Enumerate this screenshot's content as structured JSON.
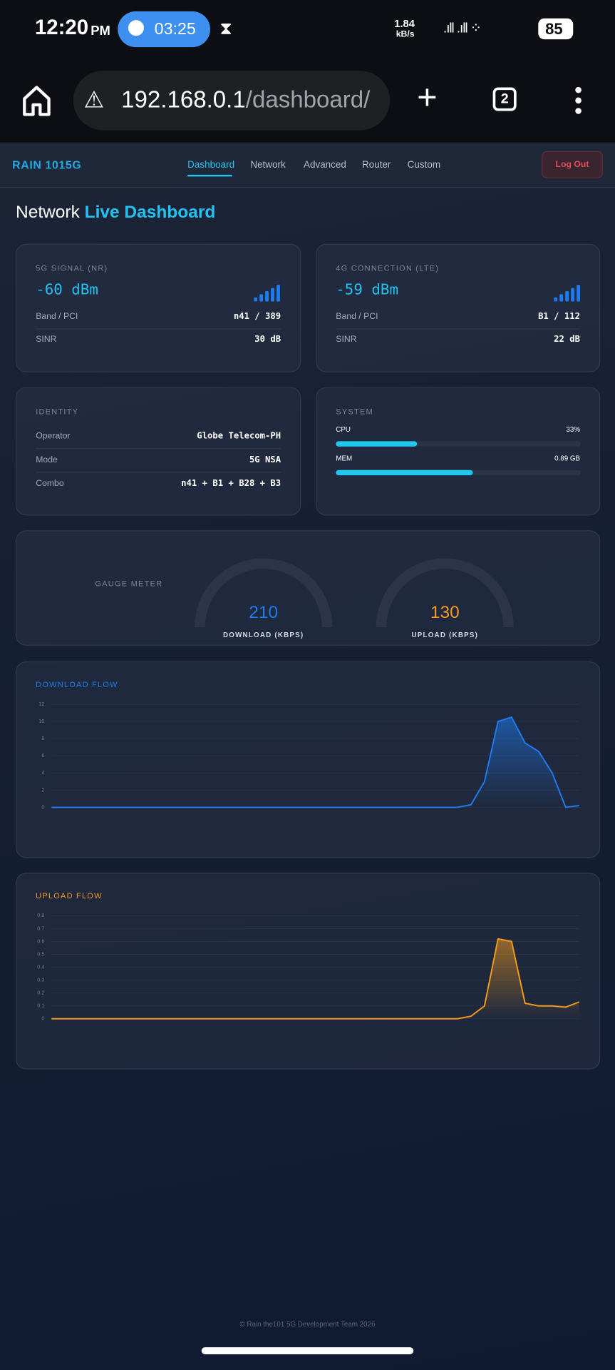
{
  "status_bar": {
    "time": "12:20",
    "meridiem": "PM",
    "timer": "03:25",
    "speed": "1.84",
    "speed_unit": "kB/s",
    "battery": "85"
  },
  "browser": {
    "url_host": "192.168.0.1",
    "url_path": "/dashboard/",
    "tabs": "2"
  },
  "nav": {
    "brand": "RAIN 1015G",
    "links": [
      "Dashboard",
      "Network",
      "Advanced",
      "Router",
      "Custom"
    ],
    "logout": "Log Out"
  },
  "heading": {
    "plain": "Network",
    "accent": "Live Dashboard"
  },
  "signal_5g": {
    "label": "5G SIGNAL (NR)",
    "value": "-60 dBm",
    "rows": [
      [
        "Band / PCI",
        "n41 / 389"
      ],
      [
        "SINR",
        "30 dB"
      ]
    ]
  },
  "signal_4g": {
    "label": "4G CONNECTION (LTE)",
    "value": "-59 dBm",
    "rows": [
      [
        "Band / PCI",
        "B1 / 112"
      ],
      [
        "SINR",
        "22 dB"
      ]
    ]
  },
  "identity": {
    "label": "IDENTITY",
    "rows": [
      [
        "Operator",
        "Globe Telecom-PH"
      ],
      [
        "Mode",
        "5G NSA"
      ],
      [
        "Combo",
        "n41 + B1 + B28 + B3"
      ]
    ]
  },
  "system": {
    "label": "SYSTEM",
    "cpu": {
      "name": "CPU",
      "value": 33,
      "value_label": "33%"
    },
    "mem": {
      "name": "MEM",
      "value_label": "0.89 GB",
      "bar_percent": 56
    }
  },
  "gauges": {
    "label": "GAUGE METER",
    "items": [
      {
        "value": 210,
        "name": "DOWNLOAD (KBPS)",
        "color": "#1e7bf0"
      },
      {
        "value": 130,
        "name": "UPLOAD (KBPS)",
        "color": "#f39a1e"
      }
    ]
  },
  "charts": [
    {
      "type": "line",
      "title": "DOWNLOAD FLOW",
      "color": "#1e7bf0",
      "values": [
        0,
        0,
        0,
        0,
        0,
        0,
        0,
        0,
        0,
        0,
        0,
        0,
        0,
        0,
        0,
        0,
        0,
        0,
        0,
        0,
        0,
        0,
        0,
        0,
        0,
        0,
        0,
        0,
        0,
        0,
        0,
        0.3,
        3,
        10,
        10.5,
        7.5,
        6.5,
        4,
        0,
        0.2
      ],
      "ylim": [
        0,
        12
      ],
      "yticks": [
        0,
        2,
        4,
        6,
        8,
        10,
        12
      ],
      "grid": true
    },
    {
      "type": "line",
      "title": "UPLOAD FLOW",
      "color": "#f39a1e",
      "values": [
        0,
        0,
        0,
        0,
        0,
        0,
        0,
        0,
        0,
        0,
        0,
        0,
        0,
        0,
        0,
        0,
        0,
        0,
        0,
        0,
        0,
        0,
        0,
        0,
        0,
        0,
        0,
        0,
        0,
        0,
        0,
        0.02,
        0.1,
        0.62,
        0.6,
        0.12,
        0.1,
        0.1,
        0.09,
        0.13
      ],
      "ylim": [
        0,
        0.8
      ],
      "yticks": [
        0,
        0.1,
        0.2,
        0.3,
        0.4,
        0.5,
        0.6,
        0.7,
        0.8
      ],
      "grid": true
    }
  ],
  "footer": "© Rain the101 5G Development Team 2026"
}
